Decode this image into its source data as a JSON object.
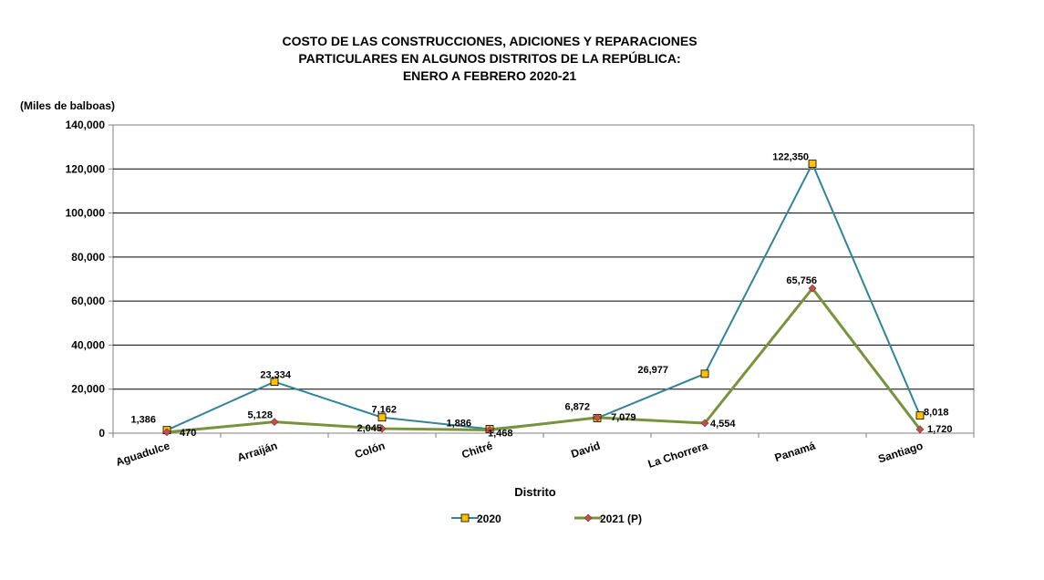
{
  "chart_data": {
    "type": "line",
    "title": [
      "COSTO DE LAS CONSTRUCCIONES, ADICIONES Y REPARACIONES",
      "PARTICULARES EN ALGUNOS DISTRITOS DE LA REPÚBLICA:",
      "ENERO A FEBRERO 2020-21"
    ],
    "unit_label": "(Miles de balboas)",
    "xlabel": "Distrito",
    "ylabel": "",
    "ylim": [
      0,
      140000
    ],
    "yticks": [
      0,
      20000,
      40000,
      60000,
      80000,
      100000,
      120000,
      140000
    ],
    "ytick_labels": [
      "0",
      "20,000",
      "40,000",
      "60,000",
      "80,000",
      "100,000",
      "120,000",
      "140,000"
    ],
    "grid": true,
    "legend_position": "bottom",
    "categories": [
      "Aguadulce",
      "Arraiján",
      "Colón",
      "Chitré",
      "David",
      "La Chorrera",
      "Panamá",
      "Santiago"
    ],
    "series": [
      {
        "name": "2020",
        "values": [
          1386,
          23334,
          7162,
          1886,
          6872,
          26977,
          122350,
          8018
        ],
        "labels": [
          "1,386",
          "23,334",
          "7,162",
          "1,886",
          "6,872",
          "26,977",
          "122,350",
          "8,018"
        ],
        "line_color": "#31849B",
        "marker_color": "#FFC000",
        "marker": "square"
      },
      {
        "name": "2021 (P)",
        "values": [
          470,
          5128,
          2045,
          1468,
          7079,
          4554,
          65756,
          1720
        ],
        "labels": [
          "470",
          "5,128",
          "2,045",
          "1,468",
          "7,079",
          "4,554",
          "65,756",
          "1,720"
        ],
        "line_color": "#77933C",
        "marker_color": "#C0504D",
        "marker": "diamond"
      }
    ]
  }
}
